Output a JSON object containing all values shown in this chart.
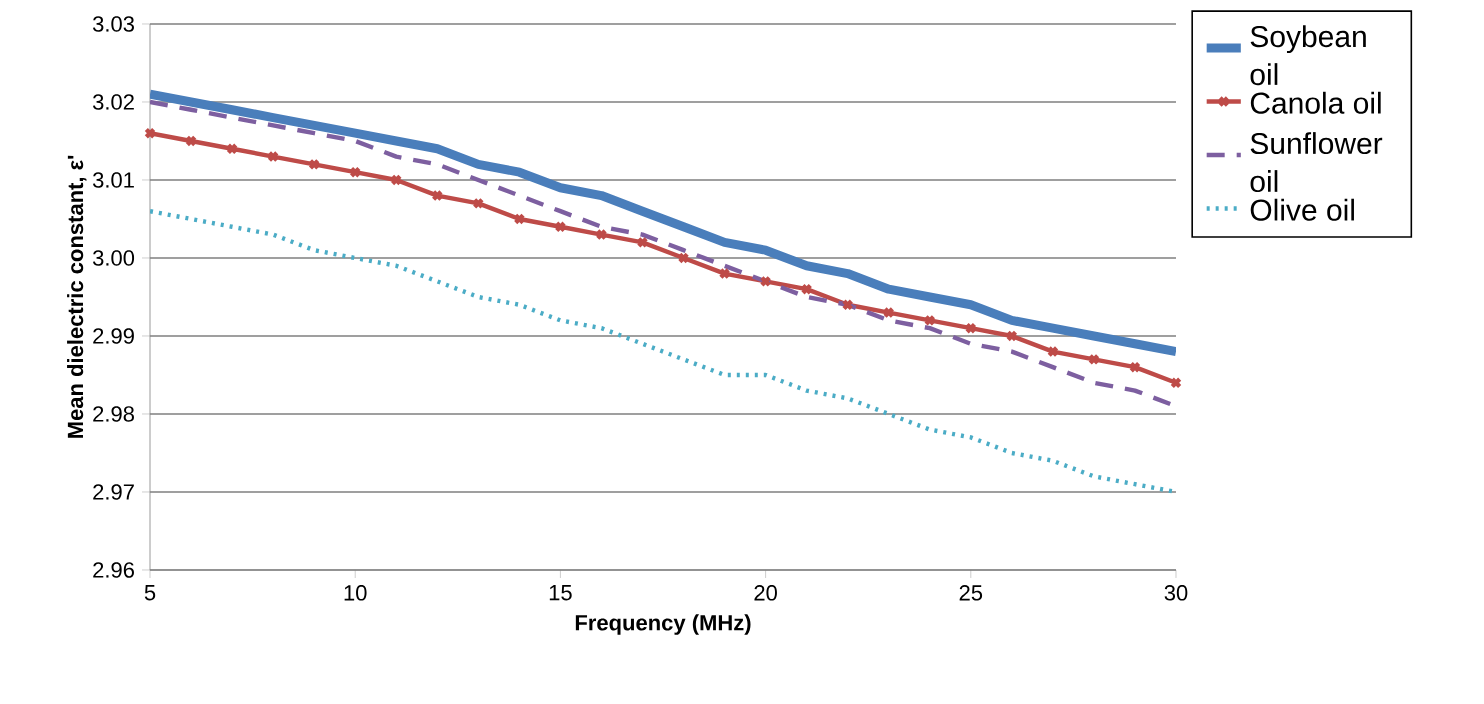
{
  "chart_data": {
    "type": "line",
    "xlabel": "Frequency (MHz)",
    "ylabel": "Mean dielectric constant, ε'",
    "x": [
      5,
      6,
      7,
      8,
      9,
      10,
      11,
      12,
      13,
      14,
      15,
      16,
      17,
      18,
      19,
      20,
      21,
      22,
      23,
      24,
      25,
      26,
      27,
      28,
      29,
      30
    ],
    "series": [
      {
        "name": "Soybean oil",
        "color": "#4a7ebb",
        "line_style": "solid",
        "marker": "none",
        "values": [
          3.021,
          3.02,
          3.019,
          3.018,
          3.017,
          3.016,
          3.015,
          3.014,
          3.012,
          3.011,
          3.009,
          3.008,
          3.006,
          3.004,
          3.002,
          3.001,
          2.999,
          2.998,
          2.996,
          2.995,
          2.994,
          2.992,
          2.991,
          2.99,
          2.989,
          2.988
        ]
      },
      {
        "name": "Canola oil",
        "color": "#be4b48",
        "line_style": "solid",
        "marker": "cross",
        "values": [
          3.016,
          3.015,
          3.014,
          3.013,
          3.012,
          3.011,
          3.01,
          3.008,
          3.007,
          3.005,
          3.004,
          3.003,
          3.002,
          3.0,
          2.998,
          2.997,
          2.996,
          2.994,
          2.993,
          2.992,
          2.991,
          2.99,
          2.988,
          2.987,
          2.986,
          2.984
        ]
      },
      {
        "name": "Sunflower oil",
        "color": "#7d5fa0",
        "line_style": "dashed",
        "marker": "none",
        "values": [
          3.02,
          3.019,
          3.018,
          3.017,
          3.016,
          3.015,
          3.013,
          3.012,
          3.01,
          3.008,
          3.006,
          3.004,
          3.003,
          3.001,
          2.999,
          2.997,
          2.995,
          2.994,
          2.992,
          2.991,
          2.989,
          2.988,
          2.986,
          2.984,
          2.983,
          2.981
        ]
      },
      {
        "name": "Olive oil",
        "color": "#4bacc6",
        "line_style": "dotted",
        "marker": "none",
        "values": [
          3.006,
          3.005,
          3.004,
          3.003,
          3.001,
          3.0,
          2.999,
          2.997,
          2.995,
          2.994,
          2.992,
          2.991,
          2.989,
          2.987,
          2.985,
          2.985,
          2.983,
          2.982,
          2.98,
          2.978,
          2.977,
          2.975,
          2.974,
          2.972,
          2.971,
          2.97
        ]
      }
    ],
    "xlim": [
      5,
      30
    ],
    "xticks": [
      5,
      10,
      15,
      20,
      25,
      30
    ],
    "ylim": [
      2.96,
      3.03
    ],
    "yticks": [
      {
        "value": 2.96,
        "label": "2.96"
      },
      {
        "value": 2.97,
        "label": "2.97"
      },
      {
        "value": 2.98,
        "label": "2.98"
      },
      {
        "value": 2.99,
        "label": "2.99"
      },
      {
        "value": 3.0,
        "label": "3.00"
      },
      {
        "value": 3.01,
        "label": "3.01"
      },
      {
        "value": 3.02,
        "label": "3.02"
      },
      {
        "value": 3.03,
        "label": "3.03"
      }
    ],
    "grid": "y",
    "legend": "right"
  }
}
